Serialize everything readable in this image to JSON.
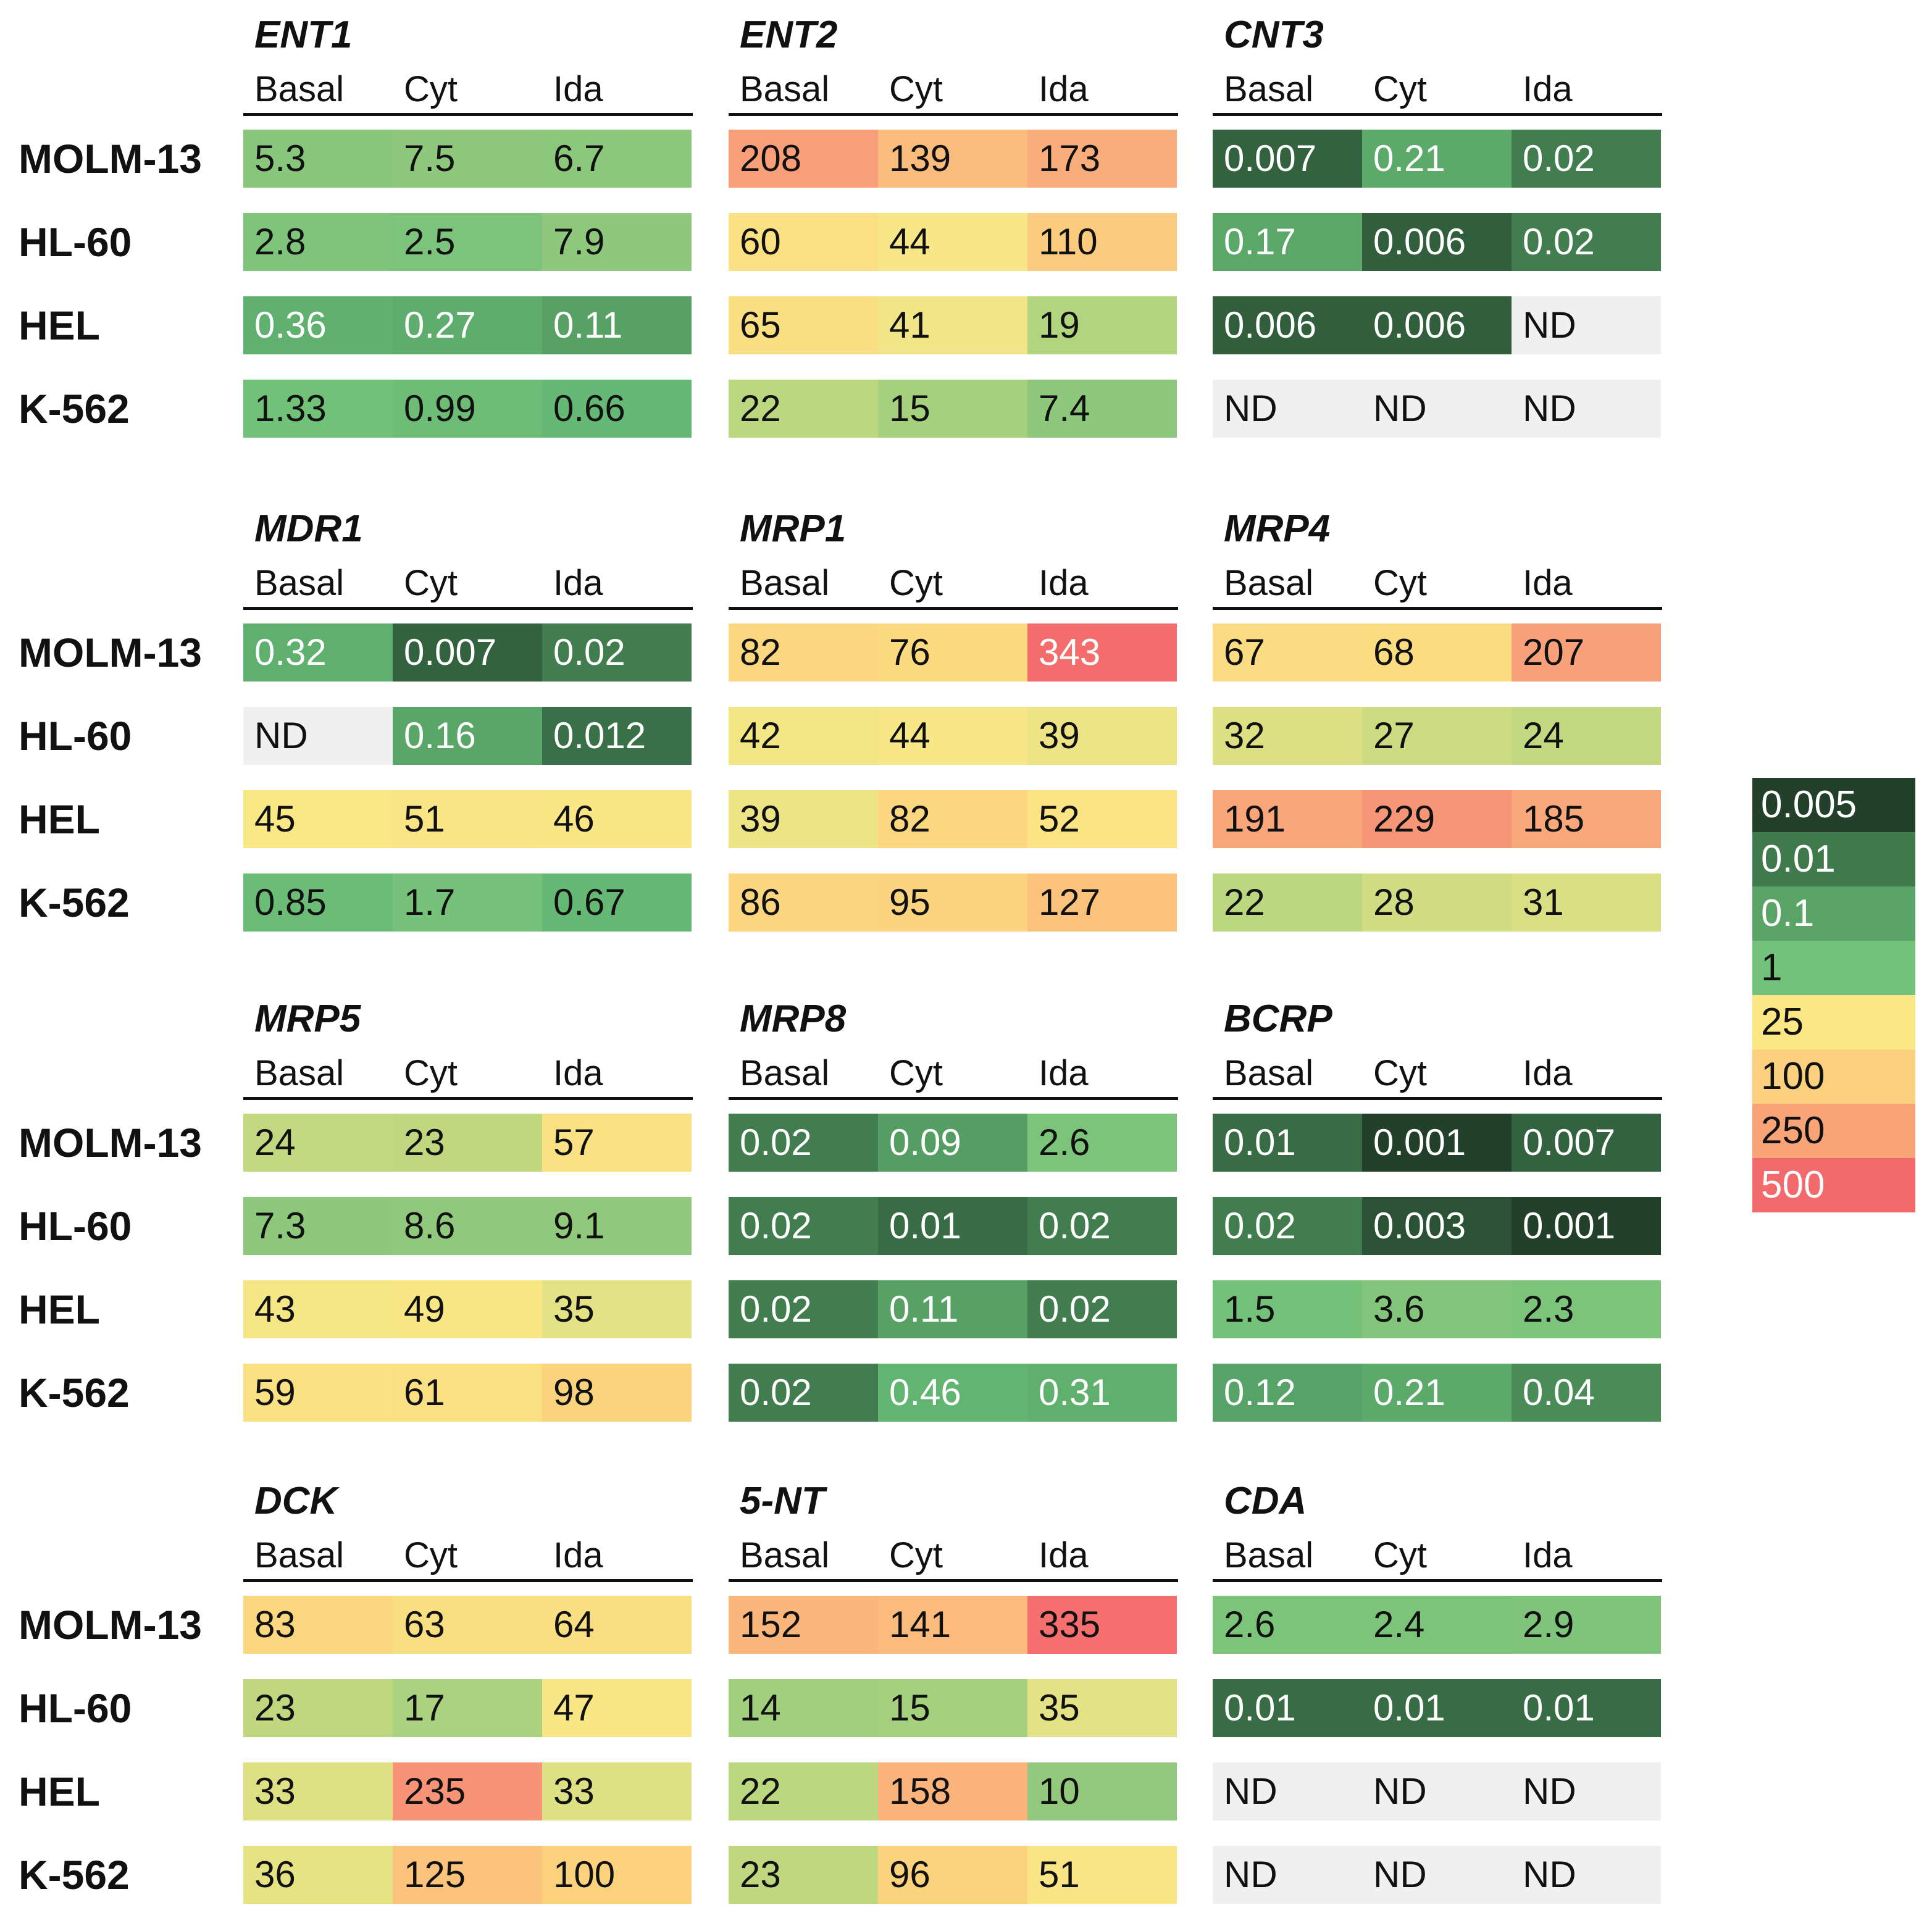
{
  "chart_data": {
    "type": "heatmap",
    "conditions": [
      "Basal",
      "Cyt",
      "Ida"
    ],
    "cell_lines": [
      "MOLM-13",
      "HL-60",
      "HEL",
      "K-562"
    ],
    "missing_label": "ND",
    "genes": [
      {
        "name": "ENT1",
        "values": [
          [
            "5.3",
            "7.5",
            "6.7"
          ],
          [
            "2.8",
            "2.5",
            "7.9"
          ],
          [
            "0.36",
            "0.27",
            "0.11"
          ],
          [
            "1.33",
            "0.99",
            "0.66"
          ]
        ]
      },
      {
        "name": "ENT2",
        "values": [
          [
            "208",
            "139",
            "173"
          ],
          [
            "60",
            "44",
            "110"
          ],
          [
            "65",
            "41",
            "19"
          ],
          [
            "22",
            "15",
            "7.4"
          ]
        ]
      },
      {
        "name": "CNT3",
        "values": [
          [
            "0.007",
            "0.21",
            "0.02"
          ],
          [
            "0.17",
            "0.006",
            "0.02"
          ],
          [
            "0.006",
            "0.006",
            "ND"
          ],
          [
            "ND",
            "ND",
            "ND"
          ]
        ]
      },
      {
        "name": "MDR1",
        "values": [
          [
            "0.32",
            "0.007",
            "0.02"
          ],
          [
            "ND",
            "0.16",
            "0.012"
          ],
          [
            "45",
            "51",
            "46"
          ],
          [
            "0.85",
            "1.7",
            "0.67"
          ]
        ]
      },
      {
        "name": "MRP1",
        "values": [
          [
            "82",
            "76",
            "343"
          ],
          [
            "42",
            "44",
            "39"
          ],
          [
            "39",
            "82",
            "52"
          ],
          [
            "86",
            "95",
            "127"
          ]
        ]
      },
      {
        "name": "MRP4",
        "values": [
          [
            "67",
            "68",
            "207"
          ],
          [
            "32",
            "27",
            "24"
          ],
          [
            "191",
            "229",
            "185"
          ],
          [
            "22",
            "28",
            "31"
          ]
        ]
      },
      {
        "name": "MRP5",
        "values": [
          [
            "24",
            "23",
            "57"
          ],
          [
            "7.3",
            "8.6",
            "9.1"
          ],
          [
            "43",
            "49",
            "35"
          ],
          [
            "59",
            "61",
            "98"
          ]
        ]
      },
      {
        "name": "MRP8",
        "values": [
          [
            "0.02",
            "0.09",
            "2.6"
          ],
          [
            "0.02",
            "0.01",
            "0.02"
          ],
          [
            "0.02",
            "0.11",
            "0.02"
          ],
          [
            "0.02",
            "0.46",
            "0.31"
          ]
        ]
      },
      {
        "name": "BCRP",
        "values": [
          [
            "0.01",
            "0.001",
            "0.007"
          ],
          [
            "0.02",
            "0.003",
            "0.001"
          ],
          [
            "1.5",
            "3.6",
            "2.3"
          ],
          [
            "0.12",
            "0.21",
            "0.04"
          ]
        ]
      },
      {
        "name": "DCK",
        "values": [
          [
            "83",
            "63",
            "64"
          ],
          [
            "23",
            "17",
            "47"
          ],
          [
            "33",
            "235",
            "33"
          ],
          [
            "36",
            "125",
            "100"
          ]
        ]
      },
      {
        "name": "5-NT",
        "values": [
          [
            "152",
            "141",
            "335"
          ],
          [
            "14",
            "15",
            "35"
          ],
          [
            "22",
            "158",
            "10"
          ],
          [
            "23",
            "96",
            "51"
          ]
        ]
      },
      {
        "name": "CDA",
        "values": [
          [
            "2.6",
            "2.4",
            "2.9"
          ],
          [
            "0.01",
            "0.01",
            "0.01"
          ],
          [
            "ND",
            "ND",
            "ND"
          ],
          [
            "ND",
            "ND",
            "ND"
          ]
        ]
      }
    ],
    "legend": {
      "labels": [
        "0.005",
        "0.01",
        "0.1",
        "1",
        "25",
        "100",
        "250",
        "500"
      ],
      "colors": [
        "#22402a",
        "#3f7a4d",
        "#5ba468",
        "#72c27c",
        "#fbe784",
        "#fbd07e",
        "#f9a477",
        "#f36a6c"
      ],
      "position": "right"
    },
    "color_stops": [
      {
        "v": 0.001,
        "c": "#22402a"
      },
      {
        "v": 0.005,
        "c": "#2f5b39"
      },
      {
        "v": 0.02,
        "c": "#417d4f"
      },
      {
        "v": 0.1,
        "c": "#56a064"
      },
      {
        "v": 0.6,
        "c": "#64b873"
      },
      {
        "v": 1.5,
        "c": "#74c27a"
      },
      {
        "v": 10,
        "c": "#92c97c"
      },
      {
        "v": 20,
        "c": "#b3d57f"
      },
      {
        "v": 45,
        "c": "#f9e886"
      },
      {
        "v": 100,
        "c": "#fcd27d"
      },
      {
        "v": 200,
        "c": "#f8a37a"
      },
      {
        "v": 350,
        "c": "#f46b6d"
      }
    ],
    "missing_color": "#f0f0f0"
  }
}
